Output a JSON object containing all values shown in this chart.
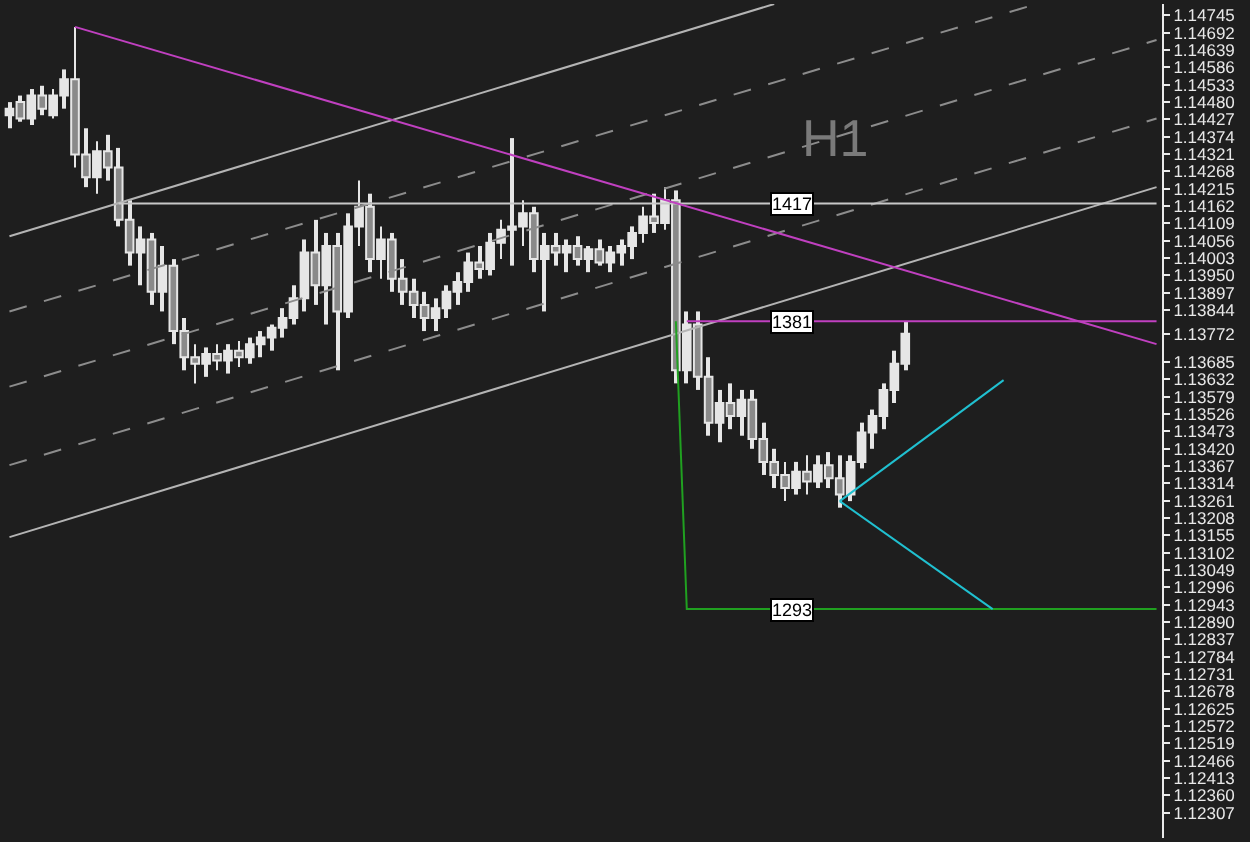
{
  "chart_data": {
    "type": "candlestick",
    "categories": [
      null,
      null,
      null,
      null,
      null,
      null,
      null,
      null,
      null,
      null,
      null,
      null,
      null,
      null,
      null,
      null,
      null,
      null,
      null,
      null,
      null,
      null,
      null,
      null,
      null,
      null,
      null,
      null,
      null,
      null,
      null,
      null,
      null,
      null,
      null,
      null,
      null,
      null,
      null,
      null,
      null,
      null,
      null,
      null,
      null,
      null,
      null,
      null,
      null,
      null,
      null,
      null,
      null,
      null,
      null,
      null,
      null,
      null,
      null,
      null,
      null,
      null,
      null,
      null,
      null,
      null,
      null,
      null,
      null,
      null,
      null,
      null,
      null,
      null,
      null,
      null,
      null,
      null,
      null,
      null,
      null,
      null,
      null,
      null,
      null,
      null,
      null,
      null,
      null,
      null,
      null,
      null,
      null,
      null,
      null,
      null,
      null,
      null,
      null,
      null,
      null,
      null,
      null,
      null,
      null,
      null
    ],
    "ohlc": [
      [
        1.1444,
        1.1448,
        1.144,
        1.1446
      ],
      [
        1.1448,
        1.145,
        1.1442,
        1.1443
      ],
      [
        1.1443,
        1.1452,
        1.1441,
        1.145
      ],
      [
        1.145,
        1.1453,
        1.1444,
        1.1446
      ],
      [
        1.1444,
        1.1452,
        1.1443,
        1.145
      ],
      [
        1.145,
        1.1458,
        1.1446,
        1.1455
      ],
      [
        1.1455,
        1.1471,
        1.1428,
        1.1432
      ],
      [
        1.1432,
        1.144,
        1.1422,
        1.1425
      ],
      [
        1.1425,
        1.1436,
        1.142,
        1.1433
      ],
      [
        1.1433,
        1.1438,
        1.1424,
        1.1428
      ],
      [
        1.1428,
        1.1434,
        1.141,
        1.1412
      ],
      [
        1.1412,
        1.1418,
        1.1398,
        1.1402
      ],
      [
        1.1402,
        1.141,
        1.1392,
        1.1406
      ],
      [
        1.1406,
        1.1408,
        1.1386,
        1.139
      ],
      [
        1.139,
        1.1404,
        1.1384,
        1.1398
      ],
      [
        1.1398,
        1.14,
        1.1374,
        1.1378
      ],
      [
        1.1378,
        1.1382,
        1.1366,
        1.137
      ],
      [
        1.137,
        1.1374,
        1.1362,
        1.1368
      ],
      [
        1.1368,
        1.1373,
        1.1364,
        1.1371
      ],
      [
        1.1371,
        1.1374,
        1.1366,
        1.1369
      ],
      [
        1.1369,
        1.1374,
        1.1365,
        1.1372
      ],
      [
        1.1372,
        1.1375,
        1.1367,
        1.137
      ],
      [
        1.137,
        1.1376,
        1.1368,
        1.1374
      ],
      [
        1.1374,
        1.1378,
        1.137,
        1.1376
      ],
      [
        1.1376,
        1.138,
        1.1372,
        1.1379
      ],
      [
        1.1379,
        1.1385,
        1.1376,
        1.1382
      ],
      [
        1.1382,
        1.1392,
        1.138,
        1.1388
      ],
      [
        1.1388,
        1.1406,
        1.1384,
        1.1402
      ],
      [
        1.1402,
        1.1412,
        1.1386,
        1.1392
      ],
      [
        1.1392,
        1.1408,
        1.138,
        1.1404
      ],
      [
        1.1404,
        1.1408,
        1.1366,
        1.1384
      ],
      [
        1.1384,
        1.1414,
        1.1382,
        1.141
      ],
      [
        1.141,
        1.1424,
        1.1404,
        1.1416
      ],
      [
        1.1416,
        1.142,
        1.1396,
        1.14
      ],
      [
        1.14,
        1.141,
        1.1394,
        1.1406
      ],
      [
        1.1406,
        1.1408,
        1.139,
        1.1394
      ],
      [
        1.1394,
        1.14,
        1.1386,
        1.139
      ],
      [
        1.139,
        1.1394,
        1.1382,
        1.1386
      ],
      [
        1.1386,
        1.139,
        1.1378,
        1.1382
      ],
      [
        1.1382,
        1.1388,
        1.1378,
        1.1385
      ],
      [
        1.1385,
        1.1392,
        1.1382,
        1.139
      ],
      [
        1.139,
        1.1396,
        1.1386,
        1.1393
      ],
      [
        1.1393,
        1.1402,
        1.139,
        1.1399
      ],
      [
        1.1399,
        1.1404,
        1.1394,
        1.1397
      ],
      [
        1.1397,
        1.1408,
        1.1395,
        1.1405
      ],
      [
        1.1405,
        1.1412,
        1.14,
        1.1409
      ],
      [
        1.1409,
        1.1437,
        1.1398,
        1.141
      ],
      [
        1.141,
        1.1418,
        1.1404,
        1.1414
      ],
      [
        1.1414,
        1.1416,
        1.1396,
        1.14
      ],
      [
        1.14,
        1.1408,
        1.1384,
        1.1404
      ],
      [
        1.1404,
        1.1408,
        1.1398,
        1.1402
      ],
      [
        1.1402,
        1.1406,
        1.1396,
        1.1404
      ],
      [
        1.1404,
        1.1407,
        1.1398,
        1.14
      ],
      [
        1.14,
        1.1404,
        1.1396,
        1.1403
      ],
      [
        1.1403,
        1.1406,
        1.1398,
        1.1399
      ],
      [
        1.1399,
        1.1404,
        1.1396,
        1.1402
      ],
      [
        1.1402,
        1.1406,
        1.1398,
        1.1404
      ],
      [
        1.1404,
        1.141,
        1.14,
        1.1408
      ],
      [
        1.1408,
        1.1416,
        1.1405,
        1.1413
      ],
      [
        1.1413,
        1.142,
        1.1408,
        1.1411
      ],
      [
        1.1411,
        1.1422,
        1.1409,
        1.1418
      ],
      [
        1.1418,
        1.1421,
        1.1362,
        1.1366
      ],
      [
        1.1366,
        1.1384,
        1.1362,
        1.138
      ],
      [
        1.138,
        1.1384,
        1.136,
        1.1364
      ],
      [
        1.1364,
        1.137,
        1.1346,
        1.135
      ],
      [
        1.135,
        1.136,
        1.1344,
        1.1356
      ],
      [
        1.1356,
        1.1362,
        1.1348,
        1.1352
      ],
      [
        1.1352,
        1.136,
        1.1346,
        1.1357
      ],
      [
        1.1357,
        1.136,
        1.1342,
        1.1345
      ],
      [
        1.1345,
        1.135,
        1.1334,
        1.1338
      ],
      [
        1.1338,
        1.1342,
        1.133,
        1.1334
      ],
      [
        1.1334,
        1.1338,
        1.1326,
        1.133
      ],
      [
        1.133,
        1.1338,
        1.1328,
        1.1335
      ],
      [
        1.1335,
        1.134,
        1.1328,
        1.1332
      ],
      [
        1.1332,
        1.134,
        1.133,
        1.1337
      ],
      [
        1.1337,
        1.1341,
        1.133,
        1.1333
      ],
      [
        1.1333,
        1.134,
        1.1324,
        1.1328
      ],
      [
        1.1328,
        1.134,
        1.1326,
        1.1338
      ],
      [
        1.1338,
        1.135,
        1.1336,
        1.1347
      ],
      [
        1.1347,
        1.1354,
        1.1342,
        1.1352
      ],
      [
        1.1352,
        1.1362,
        1.1348,
        1.136
      ],
      [
        1.136,
        1.1372,
        1.1356,
        1.1368
      ],
      [
        1.1368,
        1.1381,
        1.1366,
        1.13772
      ],
      null,
      null,
      null,
      null,
      null,
      null,
      null,
      null,
      null,
      null,
      null,
      null,
      null,
      null,
      null,
      null,
      null,
      null,
      null,
      null,
      null,
      null,
      null
    ],
    "color": "#e6e6e6",
    "series": [
      {
        "type": "line",
        "color": "#b4b4b4",
        "line_style": "solid",
        "values": [
          1.1407,
          null,
          null,
          null,
          null,
          null,
          null,
          null,
          null,
          null,
          null,
          null,
          null,
          null,
          null,
          null,
          null,
          null,
          null,
          null,
          null,
          null,
          null,
          null,
          null,
          null,
          null,
          null,
          null,
          null,
          null,
          null,
          null,
          null,
          null,
          null,
          null,
          null,
          null,
          null,
          null,
          null,
          null,
          null,
          null,
          null,
          null,
          null,
          null,
          null,
          null,
          null,
          null,
          null,
          null,
          null,
          null,
          null,
          null,
          null,
          null,
          null,
          null,
          null,
          null,
          null,
          null,
          null,
          null,
          null,
          1.1478,
          null,
          null,
          null,
          null,
          null,
          null,
          null,
          null,
          null,
          null,
          null,
          null,
          null,
          null,
          null,
          null,
          null,
          null,
          null,
          null,
          null,
          null,
          null,
          null,
          null,
          null,
          null,
          null,
          null,
          null,
          null,
          null,
          null,
          null,
          null
        ]
      },
      {
        "type": "line",
        "color": "#8c8c8c",
        "line_style": "dashed",
        "values": [
          1.1384,
          null,
          null,
          null,
          null,
          null,
          null,
          null,
          null,
          null,
          null,
          null,
          null,
          null,
          null,
          null,
          null,
          null,
          null,
          null,
          null,
          null,
          null,
          null,
          null,
          null,
          null,
          null,
          null,
          null,
          null,
          null,
          null,
          null,
          null,
          null,
          null,
          null,
          null,
          null,
          null,
          null,
          null,
          null,
          null,
          null,
          null,
          null,
          null,
          null,
          null,
          null,
          null,
          null,
          null,
          null,
          null,
          null,
          null,
          null,
          null,
          null,
          null,
          null,
          null,
          null,
          null,
          null,
          null,
          null,
          null,
          null,
          null,
          null,
          null,
          null,
          null,
          null,
          null,
          null,
          null,
          null,
          null,
          null,
          null,
          null,
          null,
          null,
          null,
          null,
          null,
          null,
          null,
          null,
          1.1478,
          null,
          null,
          null,
          null,
          null,
          null,
          null,
          null,
          null,
          null,
          null
        ]
      },
      {
        "type": "line",
        "color": "#8c8c8c",
        "line_style": "dashed",
        "values": [
          1.1361,
          null,
          null,
          null,
          null,
          null,
          null,
          null,
          null,
          null,
          null,
          null,
          null,
          null,
          null,
          null,
          null,
          null,
          null,
          null,
          null,
          null,
          null,
          null,
          null,
          null,
          null,
          null,
          null,
          null,
          null,
          null,
          null,
          null,
          null,
          null,
          null,
          null,
          null,
          null,
          null,
          null,
          null,
          null,
          null,
          null,
          null,
          null,
          null,
          null,
          null,
          null,
          null,
          null,
          null,
          null,
          null,
          null,
          null,
          null,
          null,
          null,
          null,
          null,
          null,
          null,
          null,
          null,
          null,
          null,
          null,
          null,
          null,
          null,
          null,
          null,
          null,
          null,
          null,
          null,
          null,
          null,
          null,
          null,
          null,
          null,
          null,
          null,
          null,
          null,
          null,
          null,
          null,
          null,
          null,
          null,
          null,
          null,
          null,
          null,
          null,
          null,
          null,
          null,
          null,
          1.1467
        ]
      },
      {
        "type": "line",
        "color": "#8c8c8c",
        "line_style": "dashed",
        "values": [
          1.1337,
          null,
          null,
          null,
          null,
          null,
          null,
          null,
          null,
          null,
          null,
          null,
          null,
          null,
          null,
          null,
          null,
          null,
          null,
          null,
          null,
          null,
          null,
          null,
          null,
          null,
          null,
          null,
          null,
          null,
          null,
          null,
          null,
          null,
          null,
          null,
          null,
          null,
          null,
          null,
          null,
          null,
          null,
          null,
          null,
          null,
          null,
          null,
          null,
          null,
          null,
          null,
          null,
          null,
          null,
          null,
          null,
          null,
          null,
          null,
          null,
          null,
          null,
          null,
          null,
          null,
          null,
          null,
          null,
          null,
          null,
          null,
          null,
          null,
          null,
          null,
          null,
          null,
          null,
          null,
          null,
          null,
          null,
          null,
          null,
          null,
          null,
          null,
          null,
          null,
          null,
          null,
          null,
          null,
          null,
          null,
          null,
          null,
          null,
          null,
          null,
          null,
          null,
          null,
          null,
          1.1443
        ]
      },
      {
        "type": "line",
        "color": "#b4b4b4",
        "line_style": "solid",
        "values": [
          1.1315,
          null,
          null,
          null,
          null,
          null,
          null,
          null,
          null,
          null,
          null,
          null,
          null,
          null,
          null,
          null,
          null,
          null,
          null,
          null,
          null,
          null,
          null,
          null,
          null,
          null,
          null,
          null,
          null,
          null,
          null,
          null,
          null,
          null,
          null,
          null,
          null,
          null,
          null,
          null,
          null,
          null,
          null,
          null,
          null,
          null,
          null,
          null,
          null,
          null,
          null,
          null,
          null,
          null,
          null,
          null,
          null,
          null,
          null,
          null,
          null,
          null,
          null,
          null,
          null,
          null,
          null,
          null,
          null,
          null,
          null,
          null,
          null,
          null,
          null,
          null,
          null,
          null,
          null,
          null,
          null,
          null,
          null,
          null,
          null,
          null,
          null,
          null,
          null,
          null,
          null,
          null,
          null,
          null,
          null,
          null,
          null,
          null,
          null,
          null,
          null,
          null,
          null,
          null,
          null,
          1.1422
        ]
      },
      {
        "type": "line",
        "color": "#c8c8c8",
        "line_style": "solid",
        "values": [
          null,
          null,
          null,
          null,
          null,
          null,
          null,
          null,
          null,
          null,
          1.1417,
          null,
          null,
          null,
          null,
          null,
          null,
          null,
          null,
          null,
          null,
          null,
          null,
          null,
          null,
          null,
          null,
          null,
          null,
          null,
          null,
          null,
          null,
          null,
          null,
          null,
          null,
          null,
          null,
          null,
          null,
          null,
          null,
          null,
          null,
          null,
          null,
          null,
          null,
          null,
          null,
          null,
          null,
          null,
          null,
          null,
          null,
          null,
          null,
          null,
          null,
          null,
          null,
          null,
          null,
          null,
          null,
          null,
          null,
          null,
          null,
          null,
          null,
          null,
          null,
          null,
          null,
          null,
          null,
          null,
          null,
          null,
          null,
          null,
          null,
          null,
          null,
          null,
          null,
          null,
          null,
          null,
          null,
          null,
          null,
          null,
          null,
          null,
          null,
          null,
          null,
          null,
          null,
          null,
          null,
          1.1417
        ]
      },
      {
        "type": "line",
        "color": "#c040c0",
        "line_style": "solid",
        "values": [
          null,
          null,
          null,
          null,
          null,
          null,
          1.1471,
          null,
          null,
          null,
          null,
          null,
          null,
          null,
          null,
          null,
          null,
          null,
          null,
          null,
          null,
          null,
          null,
          null,
          null,
          null,
          null,
          null,
          null,
          null,
          null,
          null,
          null,
          null,
          null,
          null,
          null,
          null,
          null,
          null,
          null,
          null,
          null,
          null,
          null,
          null,
          null,
          null,
          null,
          null,
          null,
          null,
          null,
          null,
          null,
          null,
          null,
          null,
          null,
          null,
          null,
          null,
          null,
          null,
          null,
          null,
          null,
          null,
          null,
          null,
          null,
          null,
          null,
          null,
          null,
          null,
          null,
          null,
          null,
          null,
          null,
          null,
          null,
          null,
          null,
          null,
          null,
          null,
          null,
          null,
          null,
          null,
          null,
          null,
          null,
          null,
          null,
          null,
          null,
          null,
          null,
          null,
          null,
          null,
          null,
          1.1374
        ]
      },
      {
        "type": "line",
        "color": "#c040c0",
        "line_style": "solid",
        "values": [
          null,
          null,
          null,
          null,
          null,
          null,
          null,
          null,
          null,
          null,
          null,
          null,
          null,
          null,
          null,
          null,
          null,
          null,
          null,
          null,
          null,
          null,
          null,
          null,
          null,
          null,
          null,
          null,
          null,
          null,
          null,
          null,
          null,
          null,
          null,
          null,
          null,
          null,
          null,
          null,
          null,
          null,
          null,
          null,
          null,
          null,
          null,
          null,
          null,
          null,
          null,
          null,
          null,
          null,
          null,
          null,
          null,
          null,
          null,
          null,
          null,
          null,
          1.1381,
          null,
          null,
          null,
          null,
          null,
          null,
          null,
          null,
          null,
          null,
          null,
          null,
          null,
          null,
          null,
          null,
          null,
          null,
          null,
          null,
          null,
          null,
          null,
          null,
          null,
          null,
          null,
          null,
          null,
          null,
          null,
          null,
          null,
          null,
          null,
          null,
          null,
          null,
          null,
          null,
          null,
          null,
          1.1381
        ]
      },
      {
        "type": "line",
        "color": "#20a020",
        "line_style": "solid",
        "values": [
          null,
          null,
          null,
          null,
          null,
          null,
          null,
          null,
          null,
          null,
          null,
          null,
          null,
          null,
          null,
          null,
          null,
          null,
          null,
          null,
          null,
          null,
          null,
          null,
          null,
          null,
          null,
          null,
          null,
          null,
          null,
          null,
          null,
          null,
          null,
          null,
          null,
          null,
          null,
          null,
          null,
          null,
          null,
          null,
          null,
          null,
          null,
          null,
          null,
          null,
          null,
          null,
          null,
          null,
          null,
          null,
          null,
          null,
          null,
          null,
          null,
          1.1381,
          1.1293,
          null,
          null,
          null,
          null,
          null,
          null,
          null,
          null,
          null,
          null,
          null,
          null,
          null,
          null,
          null,
          null,
          null,
          null,
          null,
          null,
          null,
          null,
          null,
          null,
          null,
          null,
          null,
          null,
          null,
          null,
          null,
          null,
          null,
          null,
          null,
          null,
          null,
          null,
          null,
          null,
          null,
          null,
          1.1293
        ]
      },
      {
        "type": "line",
        "color": "#20c0d0",
        "line_style": "solid",
        "values": [
          null,
          null,
          null,
          null,
          null,
          null,
          null,
          null,
          null,
          null,
          null,
          null,
          null,
          null,
          null,
          null,
          null,
          null,
          null,
          null,
          null,
          null,
          null,
          null,
          null,
          null,
          null,
          null,
          null,
          null,
          null,
          null,
          null,
          null,
          null,
          null,
          null,
          null,
          null,
          null,
          null,
          null,
          null,
          null,
          null,
          null,
          null,
          null,
          null,
          null,
          null,
          null,
          null,
          null,
          null,
          null,
          null,
          null,
          null,
          null,
          null,
          null,
          null,
          null,
          null,
          null,
          null,
          null,
          null,
          null,
          null,
          null,
          null,
          null,
          null,
          null,
          1.1326,
          null,
          null,
          null,
          null,
          null,
          null,
          null,
          null,
          null,
          null,
          null,
          null,
          null,
          null,
          1.1363,
          null,
          null,
          null,
          null,
          null,
          null,
          null,
          null,
          null,
          null,
          null,
          null,
          null,
          null
        ]
      },
      {
        "type": "line",
        "color": "#20c0d0",
        "line_style": "solid",
        "values": [
          null,
          null,
          null,
          null,
          null,
          null,
          null,
          null,
          null,
          null,
          null,
          null,
          null,
          null,
          null,
          null,
          null,
          null,
          null,
          null,
          null,
          null,
          null,
          null,
          null,
          null,
          null,
          null,
          null,
          null,
          null,
          null,
          null,
          null,
          null,
          null,
          null,
          null,
          null,
          null,
          null,
          null,
          null,
          null,
          null,
          null,
          null,
          null,
          null,
          null,
          null,
          null,
          null,
          null,
          null,
          null,
          null,
          null,
          null,
          null,
          null,
          null,
          null,
          null,
          null,
          null,
          null,
          null,
          null,
          null,
          null,
          null,
          null,
          null,
          null,
          null,
          1.1326,
          null,
          null,
          null,
          null,
          null,
          null,
          null,
          null,
          null,
          null,
          null,
          null,
          null,
          1.1293,
          null,
          null,
          null,
          null,
          null,
          null,
          null,
          null,
          null,
          null,
          null,
          null,
          null,
          null,
          null
        ]
      }
    ],
    "annotations": [
      "H1",
      {
        "text": "1417",
        "y": 1.1417
      },
      {
        "text": "1381",
        "y": 1.1381
      },
      {
        "text": "1293",
        "y": 1.1293
      }
    ],
    "ylim": [
      1.1223,
      1.1478
    ],
    "yticks": [
      1.14745,
      1.14692,
      1.14639,
      1.14586,
      1.14533,
      {
        "value": 1.1448,
        "label": "1.14480"
      },
      1.14427,
      1.14374,
      1.14321,
      1.14268,
      1.14215,
      1.14162,
      1.14109,
      1.14056,
      1.14003,
      {
        "value": 1.1395,
        "label": "1.13950"
      },
      1.13897,
      1.13844,
      1.13772,
      1.13685,
      1.13632,
      1.13579,
      1.13526,
      1.13473,
      {
        "value": 1.1342,
        "label": "1.13420"
      },
      1.13367,
      1.13314,
      1.13261,
      1.13208,
      1.13155,
      1.13102,
      1.13049,
      1.12996,
      1.12943,
      {
        "value": 1.1289,
        "label": "1.12890"
      },
      1.12837,
      1.12784,
      1.12731,
      1.12678,
      1.12625,
      1.12572,
      1.12519,
      1.12466,
      1.12413,
      {
        "value": 1.1236,
        "label": "1.12360"
      },
      1.12307
    ],
    "tick_labels": "y",
    "grid": false
  }
}
